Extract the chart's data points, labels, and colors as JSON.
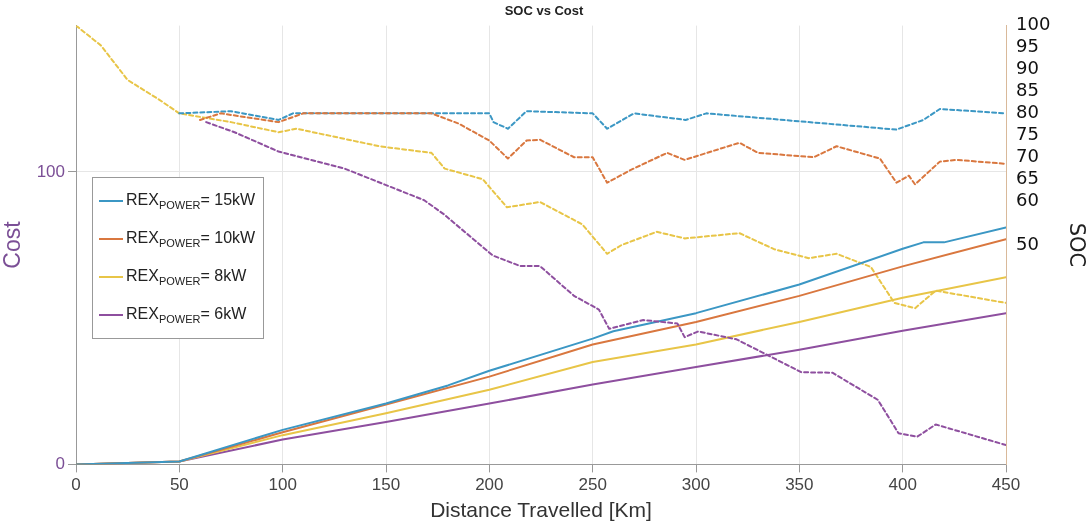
{
  "chart_data": {
    "type": "line",
    "title": "SOC vs Cost",
    "xlabel": "Distance Travelled [Km]",
    "ylabel": "Cost",
    "y2label": "SOC",
    "xlim": [
      0,
      450
    ],
    "xticks": [
      0,
      50,
      100,
      150,
      200,
      250,
      300,
      350,
      400,
      450
    ],
    "ylim": [
      0,
      150
    ],
    "yticks": [
      0,
      100
    ],
    "y2lim": [
      0,
      100
    ],
    "y2ticks": [
      50,
      60,
      65,
      70,
      75,
      80,
      85,
      90,
      95,
      100
    ],
    "grid": true,
    "legend": "left",
    "marker": "none",
    "series": [
      {
        "name": "REX$_{POWER}$= 15kW",
        "color": "#3b97c4",
        "line_style": "solid",
        "x": [
          0,
          50,
          100,
          150,
          180,
          200,
          250,
          260,
          300,
          350,
          400,
          410,
          420,
          450
        ],
        "values": [
          0,
          1,
          11.8,
          20.8,
          27,
          32,
          43,
          45.5,
          51.7,
          61.5,
          73.7,
          75.9,
          75.9,
          81
        ]
      },
      {
        "name": "REX$_{POWER}$= 10kW",
        "color": "#d9773f",
        "line_style": "solid",
        "x": [
          0,
          50,
          100,
          150,
          200,
          250,
          300,
          350,
          400,
          450
        ],
        "values": [
          0,
          1,
          11,
          20.5,
          30,
          41,
          48.7,
          57.6,
          67.7,
          77
        ]
      },
      {
        "name": "REX$_{POWER}$= 8kW",
        "color": "#e8c547",
        "line_style": "solid",
        "x": [
          0,
          50,
          100,
          150,
          200,
          250,
          300,
          350,
          400,
          450
        ],
        "values": [
          0,
          1,
          10,
          17.5,
          25.5,
          35,
          41,
          48.7,
          57,
          64
        ]
      },
      {
        "name": "REX$_{POWER}$= 6kW",
        "color": "#8e4f9f",
        "line_style": "solid",
        "x": [
          0,
          50,
          100,
          150,
          200,
          250,
          300,
          350,
          400,
          450
        ],
        "values": [
          0,
          1,
          8.5,
          14.5,
          20.8,
          27.3,
          33.3,
          39.2,
          45.7,
          51.7
        ]
      },
      {
        "color": "#3b97c4",
        "line_style": "dashed",
        "axis": "y2",
        "x": [
          50,
          75,
          98,
          105,
          200,
          202,
          209,
          218,
          250,
          257,
          270,
          295,
          305,
          397,
          410,
          418,
          450
        ],
        "values": [
          80,
          80.5,
          78.5,
          80,
          80,
          78,
          76.5,
          80.5,
          80,
          76.5,
          80,
          78.5,
          80,
          76.3,
          78.5,
          81,
          80
        ]
      },
      {
        "color": "#d9773f",
        "line_style": "dashed",
        "axis": "y2",
        "x": [
          60,
          70,
          98,
          110,
          172,
          185,
          200,
          209,
          218,
          224.5,
          241,
          250,
          257,
          268,
          286,
          294.5,
          321,
          330,
          357,
          368,
          389,
          397,
          403,
          406,
          418,
          426,
          450
        ],
        "values": [
          78.5,
          80,
          78,
          80,
          80,
          77.7,
          73.8,
          69.7,
          73.8,
          74,
          70,
          70,
          64.2,
          67,
          71,
          69.4,
          73.3,
          71,
          70,
          72.5,
          69.7,
          64.2,
          65.8,
          63.8,
          69,
          69.4,
          68.5
        ]
      },
      {
        "color": "#e8c547",
        "line_style": "dashed",
        "axis": "y2",
        "x": [
          0,
          12,
          25,
          40,
          50,
          75,
          98,
          106.7,
          146.8,
          172,
          178.4,
          196.8,
          208.5,
          224.5,
          245,
          257,
          264,
          281,
          294.6,
          321,
          338,
          354.6,
          368,
          384.6,
          396,
          406,
          416,
          450
        ],
        "values": [
          100,
          95.5,
          87.6,
          83.2,
          80,
          78,
          75.7,
          76.5,
          72.5,
          71,
          67.4,
          65,
          58.6,
          59.8,
          54.7,
          48,
          50,
          53,
          51.5,
          52.7,
          49,
          47,
          48,
          45,
          36.8,
          35.6,
          39.6,
          36.8
        ]
      },
      {
        "color": "#8e4f9f",
        "line_style": "dashed",
        "axis": "y2",
        "x": [
          63,
          76.7,
          98,
          130,
          168.5,
          178,
          201.7,
          215,
          224.5,
          241,
          253,
          258,
          274.5,
          291,
          294.5,
          301,
          319.6,
          351,
          366,
          388,
          398,
          407,
          416,
          450
        ],
        "values": [
          78,
          75.7,
          71.3,
          67.4,
          60.2,
          57,
          47.6,
          45.2,
          45.2,
          38.4,
          35.3,
          30.9,
          32.9,
          32.1,
          29,
          30.3,
          28.5,
          21,
          20.9,
          14.7,
          7.1,
          6.3,
          9.1,
          4.4
        ]
      }
    ]
  }
}
